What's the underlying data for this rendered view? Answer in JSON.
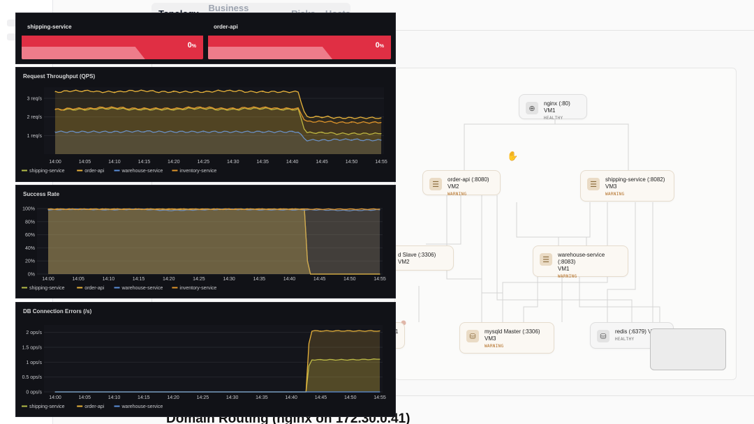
{
  "tabs": [
    {
      "label": "Topology",
      "active": true
    },
    {
      "label": "Business Islands",
      "active": false
    },
    {
      "label": "Risks",
      "active": false
    },
    {
      "label": "Hosts",
      "active": false
    }
  ],
  "topology": {
    "nodes": [
      {
        "id": "nginx",
        "title": "nginx (:80) VM1",
        "title2": "",
        "status": "HEALTHY",
        "icon": "globe-icon",
        "health": "healthy"
      },
      {
        "id": "order-api",
        "title": "order-api (:8080) VM2",
        "title2": "",
        "status": "WARNING",
        "icon": "server-icon",
        "health": "warning"
      },
      {
        "id": "shipping-service",
        "title": "shipping-service (:8082)",
        "title2": "VM3",
        "status": "WARNING",
        "icon": "server-icon",
        "health": "warning"
      },
      {
        "id": "mysql-slave",
        "title": "d Slave (:3306) VM2",
        "title2": "",
        "status": "",
        "icon": "",
        "health": "warning"
      },
      {
        "id": "warehouse-service",
        "title": "warehouse-service (:8083)",
        "title2": "VM1",
        "status": "WARNING",
        "icon": "server-icon",
        "health": "warning"
      },
      {
        "id": "partial-left",
        "title": "1",
        "title2": "",
        "status": "",
        "icon": "",
        "health": "warning"
      },
      {
        "id": "mysqld-master",
        "title": "mysqld Master (:3306)",
        "title2": "VM3",
        "status": "WARNING",
        "icon": "database-icon",
        "health": "warning"
      },
      {
        "id": "redis",
        "title": "redis (:6379) VM",
        "title2": "",
        "status": "HEALTHY",
        "icon": "database-icon",
        "health": "healthy"
      }
    ]
  },
  "section_title": "Domain Routing (nginx on 172.30.0.41)",
  "colors": {
    "shipping": "#b5bd48",
    "order": "#e8b33b",
    "warehouse": "#5b8fd9",
    "inventory": "#e0952b",
    "stat_red": "#e02f44"
  },
  "stats": [
    {
      "title": "shipping-service",
      "value": "0",
      "unit": "%"
    },
    {
      "title": "order-api",
      "value": "0",
      "unit": "%"
    }
  ],
  "chart_data": [
    {
      "type": "line",
      "title": "Request Throughput (QPS)",
      "x": [
        "14:00",
        "14:05",
        "14:10",
        "14:15",
        "14:20",
        "14:25",
        "14:30",
        "14:35",
        "14:40",
        "14:45",
        "14:50",
        "14:55"
      ],
      "ylim": [
        0,
        3.6
      ],
      "yticks": [
        {
          "v": 1,
          "label": "1 req/s"
        },
        {
          "v": 2,
          "label": "2 req/s"
        },
        {
          "v": 3,
          "label": "3 req/s"
        }
      ],
      "series": [
        {
          "name": "shipping-service",
          "color_key": "shipping",
          "values": [
            2.4,
            2.4,
            2.45,
            2.4,
            2.4,
            2.45,
            2.4,
            2.45,
            2.4,
            1.15,
            1.1,
            1.1
          ]
        },
        {
          "name": "order-api",
          "color_key": "order",
          "values": [
            3.35,
            3.4,
            3.35,
            3.4,
            3.35,
            3.35,
            3.4,
            3.35,
            3.35,
            2.0,
            1.95,
            1.95
          ]
        },
        {
          "name": "warehouse-service",
          "color_key": "warehouse",
          "values": [
            1.2,
            1.2,
            1.2,
            1.22,
            1.2,
            1.2,
            1.2,
            1.2,
            1.2,
            0.75,
            0.78,
            0.75
          ]
        },
        {
          "name": "inventory-service",
          "color_key": "inventory",
          "values": [
            2.4,
            2.45,
            2.5,
            2.45,
            2.45,
            2.5,
            2.45,
            2.5,
            2.45,
            1.75,
            1.7,
            1.7
          ]
        }
      ],
      "legend": "bottom"
    },
    {
      "type": "area",
      "title": "Success Rate",
      "x": [
        "14:00",
        "14:05",
        "14:10",
        "14:15",
        "14:20",
        "14:25",
        "14:30",
        "14:35",
        "14:40",
        "14:45",
        "14:50",
        "14:55"
      ],
      "ylim": [
        0,
        100
      ],
      "yticks": [
        {
          "v": 0,
          "label": "0%"
        },
        {
          "v": 20,
          "label": "20%"
        },
        {
          "v": 40,
          "label": "40%"
        },
        {
          "v": 60,
          "label": "60%"
        },
        {
          "v": 80,
          "label": "80%"
        },
        {
          "v": 100,
          "label": "100%"
        }
      ],
      "series": [
        {
          "name": "shipping-service",
          "color_key": "shipping",
          "values": [
            99,
            99,
            99,
            99,
            99,
            99,
            99,
            99,
            99,
            0,
            0,
            0
          ]
        },
        {
          "name": "order-api",
          "color_key": "order",
          "values": [
            99,
            99,
            99,
            99,
            99,
            99,
            99,
            99,
            99,
            0,
            0,
            0
          ]
        },
        {
          "name": "warehouse-service",
          "color_key": "warehouse",
          "values": [
            98,
            99,
            98,
            99,
            97,
            98,
            99,
            98,
            98,
            98,
            97,
            98
          ]
        },
        {
          "name": "inventory-service",
          "color_key": "inventory",
          "values": [
            99,
            99,
            99,
            99,
            99,
            99,
            99,
            99,
            99,
            99,
            99,
            99
          ]
        }
      ],
      "legend": "bottom"
    },
    {
      "type": "area",
      "title": "DB Connection Errors (/s)",
      "x": [
        "14:00",
        "14:05",
        "14:10",
        "14:15",
        "14:20",
        "14:25",
        "14:30",
        "14:35",
        "14:40",
        "14:45",
        "14:50",
        "14:55"
      ],
      "ylim": [
        0,
        2.25
      ],
      "yticks": [
        {
          "v": 0,
          "label": "0 ops/s"
        },
        {
          "v": 0.5,
          "label": "0.5 ops/s"
        },
        {
          "v": 1,
          "label": "1 ops/s"
        },
        {
          "v": 1.5,
          "label": "1.5 ops/s"
        },
        {
          "v": 2,
          "label": "2 ops/s"
        }
      ],
      "series": [
        {
          "name": "shipping-service",
          "color_key": "shipping",
          "values": [
            0,
            0,
            0,
            0,
            0,
            0,
            0,
            0,
            0,
            1.08,
            1.08,
            1.1
          ]
        },
        {
          "name": "order-api",
          "color_key": "order",
          "values": [
            0,
            0,
            0,
            0,
            0,
            0,
            0,
            0,
            0,
            2.05,
            2.05,
            2.05
          ]
        },
        {
          "name": "warehouse-service",
          "color_key": "warehouse",
          "values": [
            0,
            0,
            0,
            0,
            0,
            0,
            0,
            0,
            0,
            0,
            0,
            0
          ]
        }
      ],
      "legend": "bottom"
    }
  ]
}
